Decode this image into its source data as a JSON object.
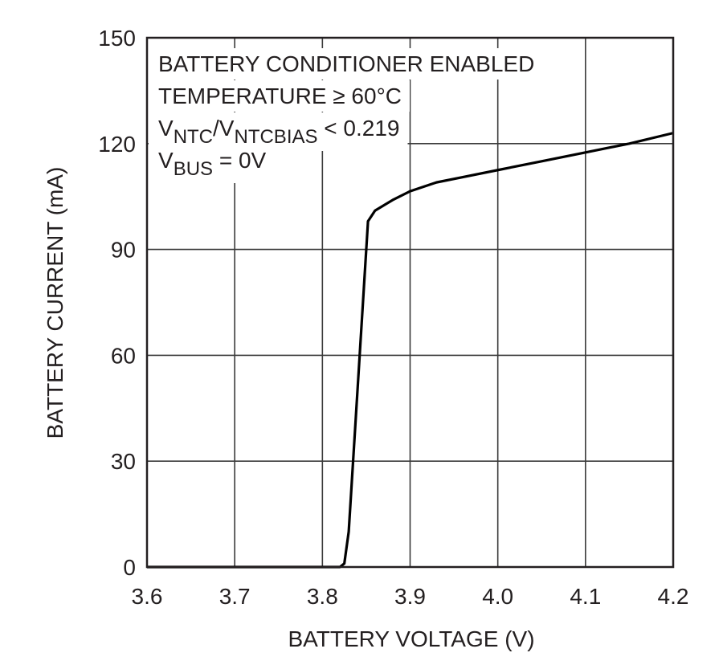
{
  "chart_data": {
    "type": "line",
    "x_label": "BATTERY VOLTAGE (V)",
    "y_label": "BATTERY CURRENT (mA)",
    "annotation": [
      [
        {
          "text": "BATTERY CONDITIONER ENABLED"
        }
      ],
      [
        {
          "text": "TEMPERATURE ≥ 60°C"
        }
      ],
      [
        {
          "text": "V"
        },
        {
          "text": "NTC",
          "sub": true
        },
        {
          "text": "/V"
        },
        {
          "text": "NTCBIAS",
          "sub": true
        },
        {
          "text": " < 0.219"
        }
      ],
      [
        {
          "text": "V"
        },
        {
          "text": "BUS",
          "sub": true
        },
        {
          "text": " = 0V"
        }
      ]
    ],
    "x": [
      3.6,
      3.82,
      3.825,
      3.83,
      3.84,
      3.85,
      3.852,
      3.86,
      3.88,
      3.9,
      3.93,
      3.96,
      4.0,
      4.05,
      4.1,
      4.15,
      4.2
    ],
    "values": [
      0,
      0,
      1,
      10,
      50,
      90,
      98,
      101,
      104,
      106.5,
      109,
      110.5,
      112.5,
      115,
      117.5,
      120,
      123
    ],
    "color": "#000000",
    "xlim": [
      3.6,
      4.2
    ],
    "xticks": [
      3.6,
      3.7,
      3.8,
      3.9,
      {
        "value": 4,
        "label": "4.0"
      },
      4.1,
      4.2
    ],
    "ylim": [
      0,
      150
    ],
    "yticks": [
      0,
      30,
      60,
      90,
      120,
      150
    ],
    "grid": true
  }
}
